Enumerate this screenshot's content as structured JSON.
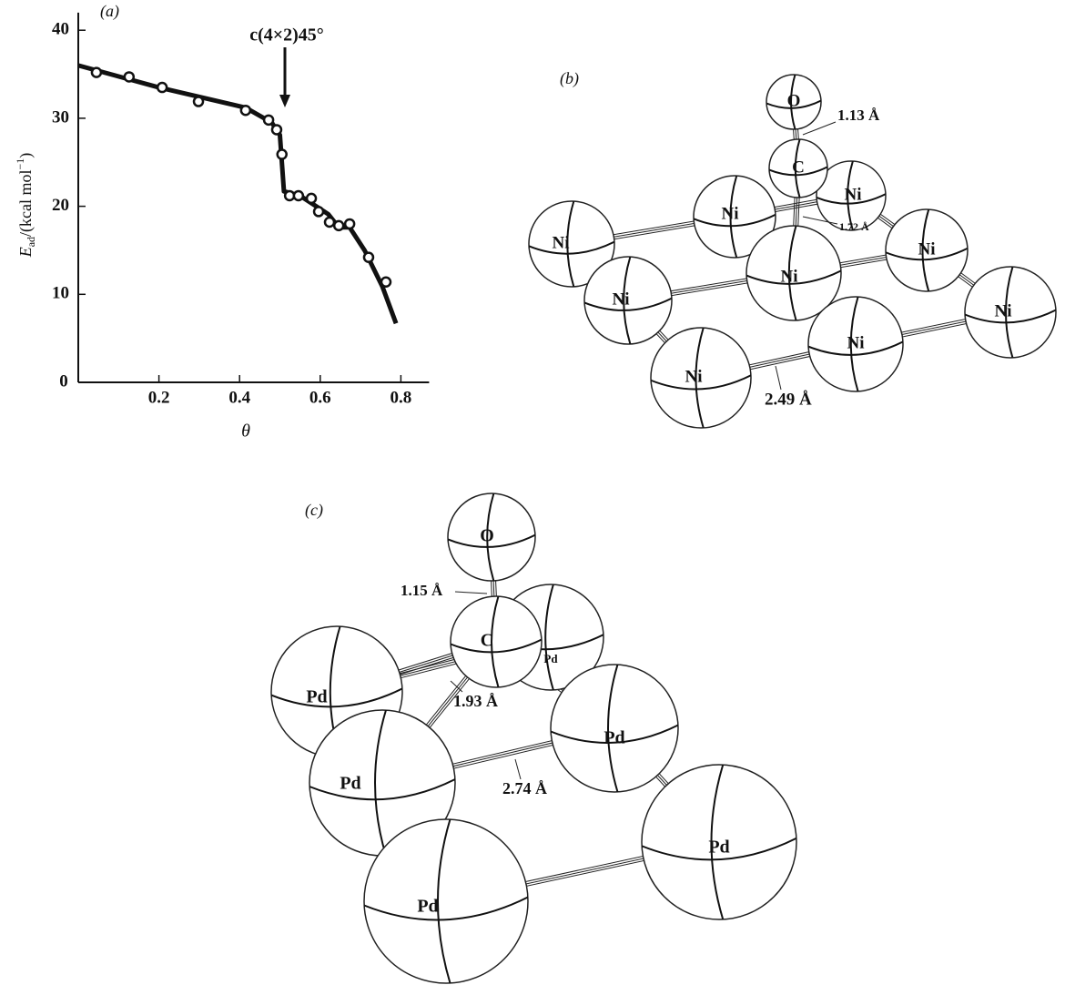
{
  "chart_data": {
    "type": "scatter",
    "panel_label": "(a)",
    "annotation": "c(4×2)45°",
    "ylabel": [
      "E",
      "ad",
      "/(kcal mol",
      "−1",
      ")"
    ],
    "xlabel": "θ",
    "x": [
      0.045,
      0.126,
      0.208,
      0.298,
      0.415,
      0.472,
      0.492,
      0.505,
      0.524,
      0.546,
      0.578,
      0.596,
      0.623,
      0.646,
      0.673,
      0.72,
      0.763
    ],
    "values": [
      35.2,
      34.7,
      33.5,
      31.9,
      30.9,
      29.8,
      28.7,
      25.9,
      21.2,
      21.2,
      20.9,
      19.4,
      18.2,
      17.8,
      18.0,
      14.2,
      11.4
    ],
    "curve": {
      "x": [
        0,
        0.2,
        0.415,
        0.48,
        0.5,
        0.51,
        0.55,
        0.62,
        0.646,
        0.673,
        0.71,
        0.754,
        0.788
      ],
      "values": [
        36,
        33.5,
        31.2,
        29.5,
        28.1,
        21.7,
        21.2,
        19.1,
        17.6,
        17.6,
        15,
        10.9,
        6.7
      ]
    },
    "xlim": [
      0,
      0.87
    ],
    "ylim": [
      0,
      42
    ],
    "xticks": [
      0,
      0.2,
      0.4,
      0.6,
      0.8
    ],
    "yticks": [
      10,
      20,
      30,
      40
    ],
    "color": "#111111"
  },
  "diagram_b": {
    "panel_label": "(b)",
    "atoms": [
      "Ni",
      "Ni",
      "Ni",
      "Ni",
      "Ni",
      "Ni",
      "Ni",
      "Ni",
      "Ni",
      "C",
      "O"
    ],
    "bond_labels": [
      "1.13 Å",
      "1.72 Å",
      "2.49 Å"
    ]
  },
  "diagram_c": {
    "panel_label": "(c)",
    "atoms": [
      "Pd",
      "Pd",
      "Pd",
      "Pd",
      "Pd",
      "Pd",
      "C",
      "O"
    ],
    "bond_labels": [
      "1.15 Å",
      "1.93 Å",
      "2.74 Å"
    ]
  }
}
